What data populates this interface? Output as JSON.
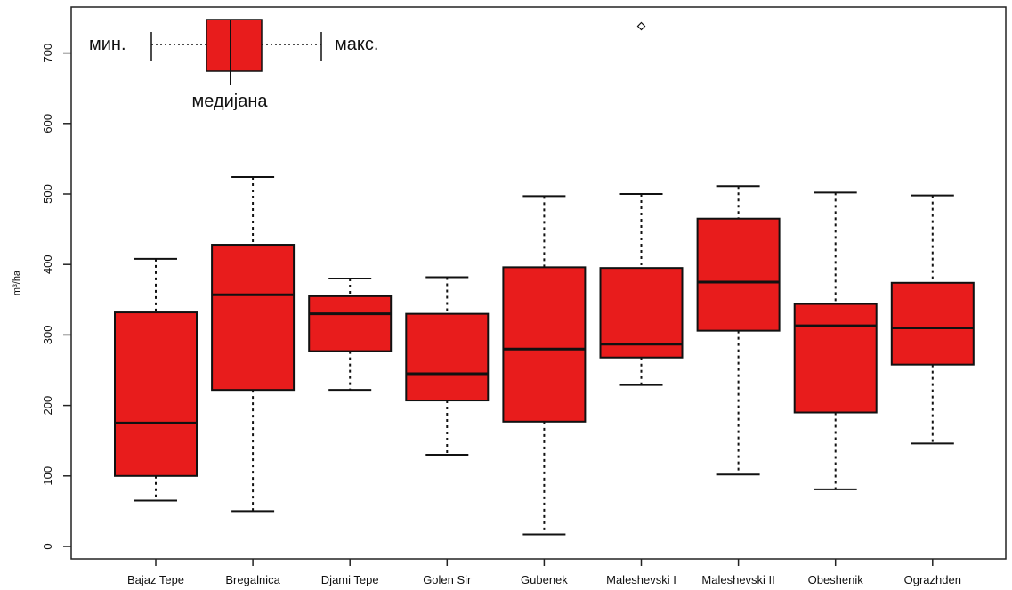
{
  "chart_data": {
    "type": "boxplot",
    "title": "",
    "ylabel": "m³/ha",
    "xlabel": "",
    "ylim": [
      0,
      750
    ],
    "yticks": [
      0,
      100,
      200,
      300,
      400,
      500,
      600,
      700
    ],
    "grid": false,
    "colors": {
      "box_fill": "#e81c1c",
      "box_stroke": "#111111"
    },
    "categories": [
      "Bajaz Tepe",
      "Bregalnica",
      "Djami Tepe",
      "Golen Sir",
      "Gubenek",
      "Maleshevski I",
      "Maleshevski II",
      "Obeshenik",
      "Ograzhden"
    ],
    "boxes": [
      {
        "min": 65,
        "q1": 100,
        "median": 175,
        "q3": 332,
        "max": 408,
        "outliers": []
      },
      {
        "min": 50,
        "q1": 222,
        "median": 357,
        "q3": 428,
        "max": 524,
        "outliers": []
      },
      {
        "min": 222,
        "q1": 277,
        "median": 330,
        "q3": 355,
        "max": 380,
        "outliers": []
      },
      {
        "min": 130,
        "q1": 207,
        "median": 245,
        "q3": 330,
        "max": 382,
        "outliers": []
      },
      {
        "min": 17,
        "q1": 177,
        "median": 280,
        "q3": 396,
        "max": 497,
        "outliers": []
      },
      {
        "min": 229,
        "q1": 268,
        "median": 287,
        "q3": 395,
        "max": 500,
        "outliers": [
          738
        ]
      },
      {
        "min": 102,
        "q1": 306,
        "median": 375,
        "q3": 465,
        "max": 511,
        "outliers": []
      },
      {
        "min": 81,
        "q1": 190,
        "median": 313,
        "q3": 344,
        "max": 502,
        "outliers": []
      },
      {
        "min": 146,
        "q1": 258,
        "median": 310,
        "q3": 374,
        "max": 498,
        "outliers": []
      }
    ],
    "legend": {
      "min_label": "мин.",
      "max_label": "макс.",
      "median_label": "медијана",
      "placement": "top-left"
    }
  }
}
